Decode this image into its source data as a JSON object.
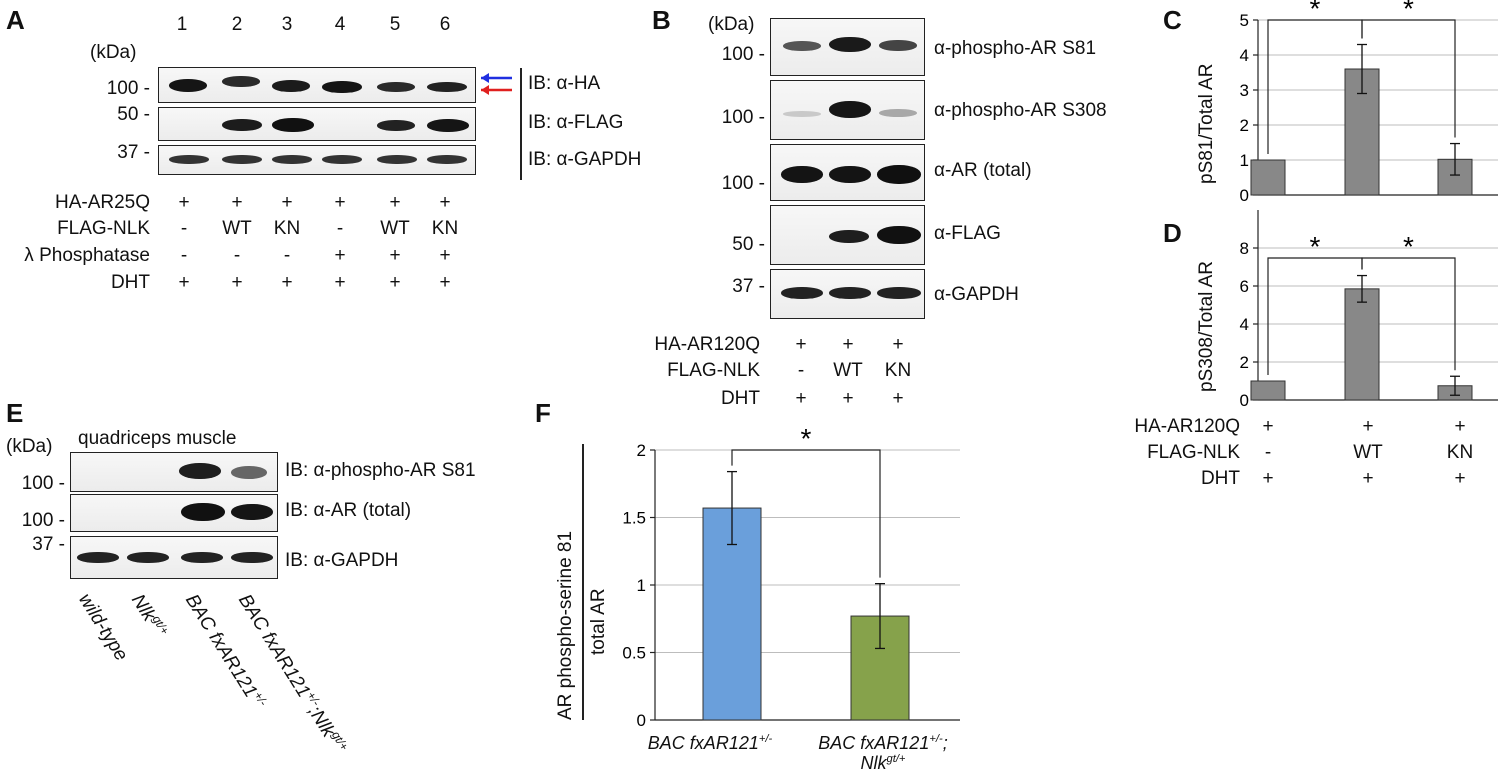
{
  "panelA": {
    "label": "A",
    "kda": "(kDa)",
    "lanes": [
      "1",
      "2",
      "3",
      "4",
      "5",
      "6"
    ],
    "markers": [
      "100 -",
      "50 -",
      "37 -"
    ],
    "blots": [
      "IB: α-HA",
      "IB: α-FLAG",
      "IB: α-GAPDH"
    ],
    "conditions": [
      {
        "name": "HA-AR25Q",
        "values": [
          "+",
          "+",
          "+",
          "+",
          "+",
          "+"
        ]
      },
      {
        "name": "FLAG-NLK",
        "values": [
          "-",
          "WT",
          "KN",
          "-",
          "WT",
          "KN"
        ]
      },
      {
        "name": "λ Phosphatase",
        "values": [
          "-",
          "-",
          "-",
          "+",
          "+",
          "+"
        ]
      },
      {
        "name": "DHT",
        "values": [
          "+",
          "+",
          "+",
          "+",
          "+",
          "+"
        ]
      }
    ],
    "arrow_colors": [
      "#1f2fe0",
      "#e0201f"
    ]
  },
  "panelB": {
    "label": "B",
    "kda": "(kDa)",
    "markers": [
      "100 -",
      "100 -",
      "100 -",
      "50 -",
      "37 -"
    ],
    "blots": [
      "α-phospho-AR S81",
      "α-phospho-AR S308",
      "α-AR (total)",
      "α-FLAG",
      "α-GAPDH"
    ],
    "conditions": [
      {
        "name": "HA-AR120Q",
        "values": [
          "+",
          "+",
          "+"
        ]
      },
      {
        "name": "FLAG-NLK",
        "values": [
          "-",
          "WT",
          "KN"
        ]
      },
      {
        "name": "DHT",
        "values": [
          "+",
          "+",
          "+"
        ]
      }
    ]
  },
  "panelC": {
    "label": "C",
    "star": "*",
    "chart_data": {
      "type": "bar",
      "ylabel": "pS81/Total AR",
      "ylim": [
        0,
        5
      ],
      "yticks": [
        "0",
        "1",
        "2",
        "3",
        "4",
        "5"
      ],
      "values": [
        1.0,
        3.6,
        1.02
      ],
      "errors": [
        0,
        0.7,
        0.45
      ],
      "grid": true,
      "color": "#888888"
    }
  },
  "panelD": {
    "label": "D",
    "star": "*",
    "chart_data": {
      "type": "bar",
      "ylabel": "pS308/Total AR",
      "ylim": [
        0,
        10
      ],
      "yticks": [
        "0",
        "2",
        "4",
        "6",
        "8"
      ],
      "values": [
        1.0,
        5.85,
        0.75
      ],
      "errors": [
        0,
        0.7,
        0.5
      ],
      "grid": true,
      "color": "#888888"
    },
    "conditions": [
      {
        "name": "HA-AR120Q",
        "values": [
          "+",
          "+",
          "+"
        ]
      },
      {
        "name": "FLAG-NLK",
        "values": [
          "-",
          "WT",
          "KN"
        ]
      },
      {
        "name": "DHT",
        "values": [
          "+",
          "+",
          "+"
        ]
      }
    ]
  },
  "panelE": {
    "label": "E",
    "kda": "(kDa)",
    "tissue": "quadriceps muscle",
    "markers": [
      "100 -",
      "100 -",
      "37 -"
    ],
    "blots": [
      "IB: α-phospho-AR S81",
      "IB: α-AR (total)",
      "IB: α-GAPDH"
    ],
    "genotypes": [
      {
        "base": "wild-type",
        "sup1": "",
        "mid": "",
        "sup2": ""
      },
      {
        "base": "Nlk",
        "sup1": "gt/+",
        "mid": "",
        "sup2": ""
      },
      {
        "base": "BAC fxAR121",
        "sup1": "+/-",
        "mid": "",
        "sup2": ""
      },
      {
        "base": "BAC fxAR121",
        "sup1": "+/-",
        "mid": ";Nlk",
        "sup2": "gt/+"
      }
    ]
  },
  "panelF": {
    "label": "F",
    "star": "*",
    "ylabel_top": "AR phospho-serine 81",
    "ylabel_bottom": "total AR",
    "xlabels": [
      {
        "base": "BAC fxAR121",
        "sup": "+/-",
        "line2": "",
        "line2sup": ""
      },
      {
        "base": "BAC fxAR121",
        "sup": "+/-",
        "line2": "Nlk",
        "line2sup": "gt/+",
        "sep": ";"
      }
    ],
    "chart_data": {
      "type": "bar",
      "ylim": [
        0,
        2
      ],
      "yticks": [
        "0",
        "0.5",
        "1",
        "1.5",
        "2"
      ],
      "values": [
        1.57,
        0.77
      ],
      "errors": [
        0.27,
        0.24
      ],
      "colors": [
        "#6a9fdb",
        "#86a24b"
      ],
      "grid": true
    }
  }
}
